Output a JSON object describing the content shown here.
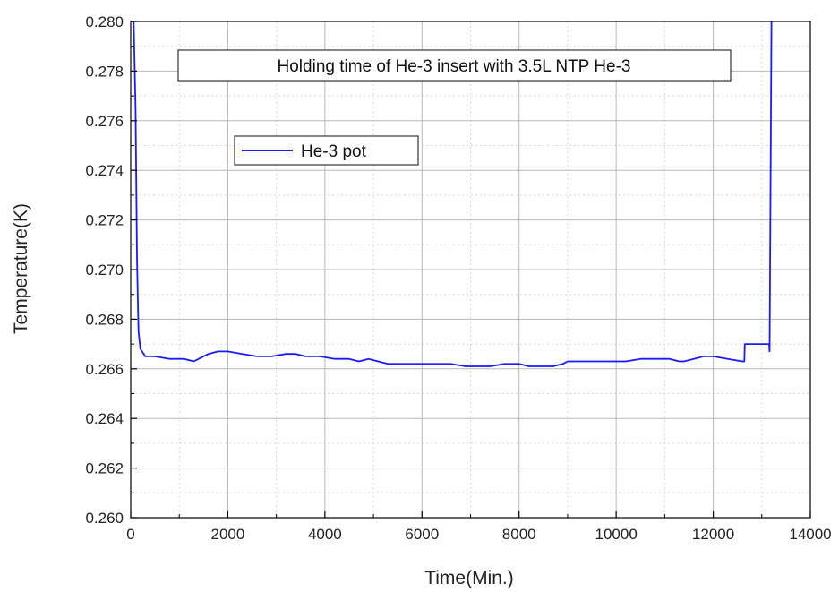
{
  "chart_data": {
    "type": "line",
    "title": "Holding time of He-3 insert with 3.5L NTP He-3",
    "xlabel": "Time(Min.)",
    "ylabel": "Temperature(K)",
    "xlim": [
      0,
      14000
    ],
    "ylim": [
      0.26,
      0.28
    ],
    "grid": true,
    "legend_position": "upper-left",
    "x_ticks": [
      0,
      2000,
      4000,
      6000,
      8000,
      10000,
      12000,
      14000
    ],
    "x_tick_labels": [
      "0",
      "2000",
      "4000",
      "6000",
      "8000",
      "10000",
      "12000",
      "14000"
    ],
    "y_ticks": [
      0.26,
      0.262,
      0.264,
      0.266,
      0.268,
      0.27,
      0.272,
      0.274,
      0.276,
      0.278,
      0.28
    ],
    "y_tick_labels": [
      "0.260",
      "0.262",
      "0.264",
      "0.266",
      "0.268",
      "0.270",
      "0.272",
      "0.274",
      "0.276",
      "0.278",
      "0.280"
    ],
    "series": [
      {
        "name": "He-3 pot",
        "color": "#1a1aff",
        "x": [
          0,
          60,
          100,
          130,
          160,
          200,
          300,
          500,
          800,
          1100,
          1300,
          1400,
          1600,
          1800,
          2000,
          2300,
          2600,
          2900,
          3200,
          3400,
          3600,
          3900,
          4200,
          4500,
          4700,
          4900,
          5100,
          5300,
          5500,
          5700,
          6000,
          6300,
          6600,
          6900,
          7100,
          7400,
          7700,
          8000,
          8200,
          8500,
          8700,
          8900,
          9000,
          9300,
          9600,
          9900,
          10200,
          10500,
          10800,
          11100,
          11300,
          11400,
          11600,
          11800,
          12000,
          12300,
          12600,
          12640,
          12650,
          13150,
          13160,
          13200
        ],
        "y": [
          0.28,
          0.28,
          0.2765,
          0.2705,
          0.2675,
          0.2668,
          0.2665,
          0.2665,
          0.2664,
          0.2664,
          0.2663,
          0.2664,
          0.2666,
          0.2667,
          0.2667,
          0.2666,
          0.2665,
          0.2665,
          0.2666,
          0.2666,
          0.2665,
          0.2665,
          0.2664,
          0.2664,
          0.2663,
          0.2664,
          0.2663,
          0.2662,
          0.2662,
          0.2662,
          0.2662,
          0.2662,
          0.2662,
          0.2661,
          0.2661,
          0.2661,
          0.2662,
          0.2662,
          0.2661,
          0.2661,
          0.2661,
          0.2662,
          0.2663,
          0.2663,
          0.2663,
          0.2663,
          0.2663,
          0.2664,
          0.2664,
          0.2664,
          0.2663,
          0.2663,
          0.2664,
          0.2665,
          0.2665,
          0.2664,
          0.2663,
          0.2663,
          0.267,
          0.267,
          0.2667,
          0.28
        ]
      }
    ]
  }
}
